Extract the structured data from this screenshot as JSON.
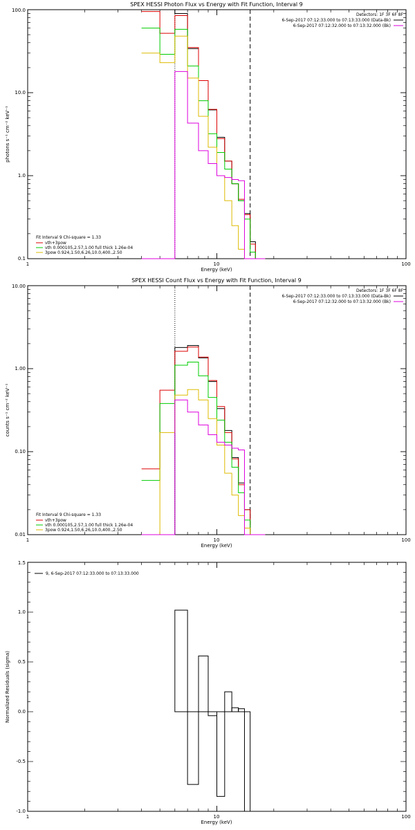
{
  "chart_data": [
    {
      "type": "line",
      "title": "SPEX HESSI Photon Flux vs Energy with Fit Function, Interval 9",
      "xlabel": "Energy (keV)",
      "ylabel": "photons s⁻¹ cm⁻² keV⁻¹",
      "xscale": "log",
      "yscale": "log",
      "xlim": [
        1,
        100
      ],
      "ylim": [
        0.1,
        100
      ],
      "x_ticks": [
        "1",
        "10",
        "100"
      ],
      "y_ticks": [
        "0.1",
        "1.0",
        "10.0",
        "100.0"
      ],
      "legend_topright": [
        {
          "text": "Detectors: 1F 3F 6F 8F",
          "color": ""
        },
        {
          "text": "6-Sep-2017 07:12:33.000 to 07:13:33.000 (Data-Bk)",
          "color": "#000000"
        },
        {
          "text": "6-Sep-2017 07:12:32.000 to 07:13:32.000 (Bk)",
          "color": "#dd00dd"
        }
      ],
      "legend_bottomleft": [
        {
          "text": "Fit Interval 9   Chi-square = 1.33",
          "color": ""
        },
        {
          "text": "vth+3pow",
          "color": "#dd0000"
        },
        {
          "text": "vth 0.000105,2.57,1.00  full thick 1.26e-04",
          "color": "#00cc00"
        },
        {
          "text": "3pow 0.924,1.50,6.26,10.0,400.,2.50",
          "color": "#ddbb00"
        }
      ],
      "vlines": [
        {
          "x": 6,
          "style": "dotted",
          "color": "#000000"
        },
        {
          "x": 15,
          "style": "dashed",
          "color": "#000000"
        }
      ],
      "edges": [
        4,
        5,
        6,
        7,
        8,
        9,
        10,
        11,
        12,
        13,
        14,
        15,
        16,
        18
      ],
      "series": [
        {
          "color": "#000000",
          "values": [
            120,
            120,
            90,
            34,
            14,
            6.2,
            2.9,
            1.5,
            0.8,
            0.5,
            0.35,
            0.16,
            0.1
          ]
        },
        {
          "color": "#dd0000",
          "values": [
            95,
            52,
            85,
            35,
            14,
            6.3,
            2.8,
            1.5,
            0.8,
            0.52,
            0.34,
            0.15,
            0.1
          ]
        },
        {
          "color": "#00cc00",
          "values": [
            60,
            29,
            58,
            21,
            8,
            3.2,
            1.9,
            1.2,
            0.8,
            0.5,
            0.3,
            0.12,
            0.1
          ]
        },
        {
          "color": "#ddbb00",
          "values": [
            30,
            23,
            48,
            15,
            5.2,
            2.2,
            1.0,
            0.5,
            0.25,
            0.13,
            0.1,
            0.1,
            0.1
          ]
        },
        {
          "color": "#dd00dd",
          "values": [
            0.1,
            0.1,
            18,
            4.3,
            2.0,
            1.4,
            1.0,
            0.95,
            0.9,
            0.87,
            0.1,
            0.1,
            0.1
          ]
        }
      ]
    },
    {
      "type": "line",
      "title": "SPEX HESSI Count Flux vs Energy with Fit Function, Interval 9",
      "xlabel": "Energy (keV)",
      "ylabel": "counts s⁻¹ cm⁻² keV⁻¹",
      "xscale": "log",
      "yscale": "log",
      "xlim": [
        1,
        100
      ],
      "ylim": [
        0.01,
        10
      ],
      "x_ticks": [
        "1",
        "10",
        "100"
      ],
      "y_ticks": [
        "0.01",
        "0.10",
        "1.00",
        "10.00"
      ],
      "legend_topright": [
        {
          "text": "Detectors: 1F 3F 6F 8F",
          "color": ""
        },
        {
          "text": "6-Sep-2017 07:12:33.000 to 07:13:33.000 (Data-Bk)",
          "color": "#000000"
        },
        {
          "text": "6-Sep-2017 07:12:32.000 to 07:13:32.000 (Bk)",
          "color": "#dd00dd"
        }
      ],
      "legend_bottomleft": [
        {
          "text": "Fit Interval 9   Chi-square = 1.33",
          "color": ""
        },
        {
          "text": "vth+3pow",
          "color": "#dd0000"
        },
        {
          "text": "vth 0.000105,2.57,1.00  full thick 1.26e-04",
          "color": "#00cc00"
        },
        {
          "text": "3pow 0.924,1.50,6.26,10.0,400.,2.50",
          "color": "#ddbb00"
        }
      ],
      "vlines": [
        {
          "x": 6,
          "style": "dotted",
          "color": "#000000"
        },
        {
          "x": 15,
          "style": "dashed",
          "color": "#000000"
        }
      ],
      "edges": [
        4,
        5,
        6,
        7,
        8,
        9,
        10,
        11,
        12,
        13,
        14,
        15,
        16,
        18
      ],
      "series": [
        {
          "color": "#000000",
          "values": [
            0.01,
            0.01,
            1.8,
            1.9,
            1.35,
            0.7,
            0.33,
            0.18,
            0.085,
            0.042,
            0.02,
            0.01,
            0.01
          ]
        },
        {
          "color": "#dd0000",
          "values": [
            0.062,
            0.55,
            1.62,
            1.82,
            1.38,
            0.72,
            0.35,
            0.17,
            0.082,
            0.04,
            0.02,
            0.01,
            0.01
          ]
        },
        {
          "color": "#00cc00",
          "values": [
            0.045,
            0.38,
            1.1,
            1.2,
            0.82,
            0.45,
            0.24,
            0.13,
            0.065,
            0.032,
            0.015,
            0.01,
            0.01
          ]
        },
        {
          "color": "#ddbb00",
          "values": [
            0.01,
            0.17,
            0.48,
            0.56,
            0.42,
            0.25,
            0.12,
            0.055,
            0.03,
            0.017,
            0.012,
            0.01,
            0.01
          ]
        },
        {
          "color": "#dd00dd",
          "values": [
            0.01,
            0.01,
            0.42,
            0.3,
            0.21,
            0.16,
            0.13,
            0.12,
            0.11,
            0.105,
            0.01,
            0.01,
            0.01
          ]
        }
      ]
    },
    {
      "type": "line",
      "title": "",
      "xlabel": "Energy (keV)",
      "ylabel": "Normalized Residuals (sigma)",
      "xscale": "log",
      "xlim": [
        1,
        100
      ],
      "ylim": [
        -1,
        1.5
      ],
      "x_ticks": [
        "1",
        "10",
        "100"
      ],
      "y_ticks": [
        "-1.0",
        "-0.5",
        "0.0",
        "0.5",
        "1.0",
        "1.5"
      ],
      "legend": "9,  6-Sep-2017 07:12:33.000 to 07:13:33.000",
      "edges": [
        6,
        7,
        8,
        9,
        10,
        11,
        12,
        13,
        14,
        15
      ],
      "residuals": [
        1.02,
        -0.73,
        0.56,
        -0.04,
        -0.85,
        0.2,
        0.04,
        0.03,
        -1.0
      ]
    }
  ]
}
